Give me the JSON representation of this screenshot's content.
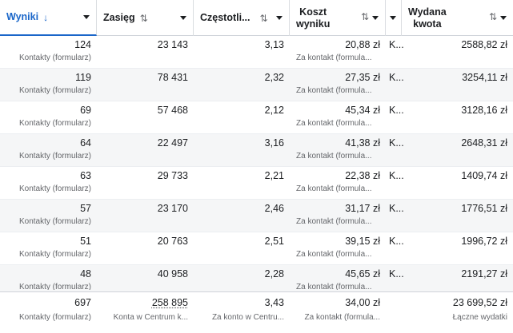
{
  "header": {
    "columns": [
      {
        "label": "Wyniki",
        "sort_icon": "↓"
      },
      {
        "label": "Zasięg",
        "sort_icon": "⇅"
      },
      {
        "label": "Częstotli...",
        "sort_icon": "⇅"
      },
      {
        "label_line1": "Koszt",
        "label_line2": "wyniku",
        "sort_icon": "⇅"
      },
      {
        "label": ""
      },
      {
        "label_line1": "Wydana",
        "label_line2": "kwota",
        "sort_icon": "⇅"
      }
    ]
  },
  "rows": [
    {
      "wyniki": "124",
      "wyniki_sub": "Kontakty (formularz)",
      "zasieg": "23 143",
      "czestotliwosc": "3,13",
      "koszt": "20,88 zł",
      "koszt_sub": "Za kontakt (formula...",
      "k": "K...",
      "kwota": "2588,82 zł"
    },
    {
      "wyniki": "119",
      "wyniki_sub": "Kontakty (formularz)",
      "zasieg": "78 431",
      "czestotliwosc": "2,32",
      "koszt": "27,35 zł",
      "koszt_sub": "Za kontakt (formula...",
      "k": "K...",
      "kwota": "3254,11 zł"
    },
    {
      "wyniki": "69",
      "wyniki_sub": "Kontakty (formularz)",
      "zasieg": "57 468",
      "czestotliwosc": "2,12",
      "koszt": "45,34 zł",
      "koszt_sub": "Za kontakt (formula...",
      "k": "K...",
      "kwota": "3128,16 zł"
    },
    {
      "wyniki": "64",
      "wyniki_sub": "Kontakty (formularz)",
      "zasieg": "22 497",
      "czestotliwosc": "3,16",
      "koszt": "41,38 zł",
      "koszt_sub": "Za kontakt (formula...",
      "k": "K...",
      "kwota": "2648,31 zł"
    },
    {
      "wyniki": "63",
      "wyniki_sub": "Kontakty (formularz)",
      "zasieg": "29 733",
      "czestotliwosc": "2,21",
      "koszt": "22,38 zł",
      "koszt_sub": "Za kontakt (formula...",
      "k": "K...",
      "kwota": "1409,74 zł"
    },
    {
      "wyniki": "57",
      "wyniki_sub": "Kontakty (formularz)",
      "zasieg": "23 170",
      "czestotliwosc": "2,46",
      "koszt": "31,17 zł",
      "koszt_sub": "Za kontakt (formula...",
      "k": "K...",
      "kwota": "1776,51 zł"
    },
    {
      "wyniki": "51",
      "wyniki_sub": "Kontakty (formularz)",
      "zasieg": "20 763",
      "czestotliwosc": "2,51",
      "koszt": "39,15 zł",
      "koszt_sub": "Za kontakt (formula...",
      "k": "K...",
      "kwota": "1996,72 zł"
    },
    {
      "wyniki": "48",
      "wyniki_sub": "Kontakty (formularz)",
      "zasieg": "40 958",
      "czestotliwosc": "2,28",
      "koszt": "45,65 zł",
      "koszt_sub": "Za kontakt (formula...",
      "k": "K...",
      "kwota": "2191,27 zł"
    }
  ],
  "totals": {
    "wyniki": "697",
    "wyniki_sub": "Kontakty (formularz)",
    "zasieg": "258 895",
    "zasieg_sub": "Konta w Centrum k...",
    "czestotliwosc": "3,43",
    "czestotliwosc_sub": "Za konto w Centru...",
    "koszt": "34,00 zł",
    "koszt_sub": "Za kontakt (formula...",
    "kwota": "23 699,52 zł",
    "kwota_sub": "Łączne wydatki"
  },
  "colors": {
    "accent": "#1a66c9",
    "alt_row": "#f5f6f7"
  }
}
